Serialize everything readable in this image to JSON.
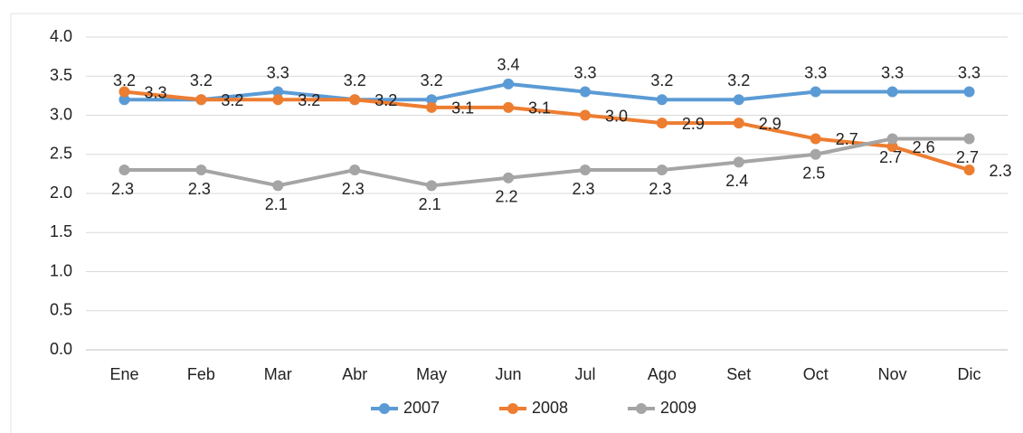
{
  "chart_data": {
    "type": "line",
    "categories": [
      "Ene",
      "Feb",
      "Mar",
      "Abr",
      "May",
      "Jun",
      "Jul",
      "Ago",
      "Set",
      "Oct",
      "Nov",
      "Dic"
    ],
    "series": [
      {
        "name": "2007",
        "color": "#5b9bd5",
        "values": [
          3.2,
          3.2,
          3.3,
          3.2,
          3.2,
          3.4,
          3.3,
          3.2,
          3.2,
          3.3,
          3.3,
          3.3
        ]
      },
      {
        "name": "2008",
        "color": "#ed7d31",
        "values": [
          3.3,
          3.2,
          3.2,
          3.2,
          3.1,
          3.1,
          3.0,
          2.9,
          2.9,
          2.7,
          2.6,
          2.3
        ],
        "value_labels": [
          "3.3",
          "3.2",
          "3.2",
          "3.2",
          "3.1",
          "3.1",
          "3.0",
          "2.9",
          "2.9",
          "2.7",
          "2.6",
          "2.3"
        ]
      },
      {
        "name": "2009",
        "color": "#a5a5a5",
        "values": [
          2.3,
          2.3,
          2.1,
          2.3,
          2.1,
          2.2,
          2.3,
          2.3,
          2.4,
          2.5,
          2.7,
          2.7
        ]
      }
    ],
    "ylim": [
      0,
      4
    ],
    "yticks": [
      {
        "value": 0,
        "label": "0.0"
      },
      {
        "value": 0.5,
        "label": "0.5"
      },
      {
        "value": 1,
        "label": "1.0"
      },
      {
        "value": 1.5,
        "label": "1.5"
      },
      {
        "value": 2,
        "label": "2.0"
      },
      {
        "value": 2.5,
        "label": "2.5"
      },
      {
        "value": 3,
        "label": "3.0"
      },
      {
        "value": 3.5,
        "label": "3.5"
      },
      {
        "value": 4,
        "label": "4.0"
      }
    ],
    "grid": true,
    "legend": "bottom"
  }
}
